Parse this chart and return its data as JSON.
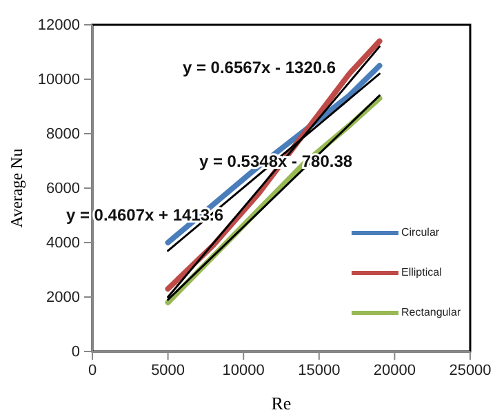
{
  "chart_data": {
    "type": "line",
    "xlabel": "Re",
    "ylabel": "Average Nu",
    "xlim": [
      0,
      25000
    ],
    "xticks": [
      0,
      5000,
      10000,
      15000,
      20000,
      25000
    ],
    "ylim": [
      0,
      12000
    ],
    "yticks": [
      0,
      2000,
      4000,
      6000,
      8000,
      10000,
      12000
    ],
    "grid": false,
    "legend": "right",
    "marker": "none",
    "line_style": "solid",
    "series": [
      {
        "name": "Circular",
        "color": "#4a7ebb",
        "x": [
          5000,
          8000,
          11000,
          14000,
          17000,
          19000
        ],
        "values": [
          4000,
          5400,
          6800,
          8100,
          9400,
          10500
        ]
      },
      {
        "name": "Elliptical",
        "color": "#be4b48",
        "x": [
          5000,
          8000,
          11000,
          14000,
          17000,
          19000
        ],
        "values": [
          2300,
          3900,
          5800,
          8000,
          10200,
          11400
        ]
      },
      {
        "name": "Rectangular",
        "color": "#98b954",
        "x": [
          5000,
          8000,
          11000,
          14000,
          17000,
          19000
        ],
        "values": [
          1800,
          3500,
          5200,
          6900,
          8300,
          9300
        ]
      },
      {
        "type": "line",
        "color": "#000000",
        "x": [
          5000,
          19000
        ],
        "values": [
          3700,
          10200
        ]
      },
      {
        "type": "line",
        "color": "#000000",
        "x": [
          5000,
          19000
        ],
        "values": [
          2000,
          11200
        ]
      },
      {
        "type": "line",
        "color": "#000000",
        "x": [
          5000,
          19000
        ],
        "values": [
          1900,
          9400
        ]
      }
    ],
    "annotations": [
      "y = 0.6567x - 1320.6",
      "y = 0.5348x - 780.38",
      "y = 0.4607x + 1413.6"
    ]
  }
}
